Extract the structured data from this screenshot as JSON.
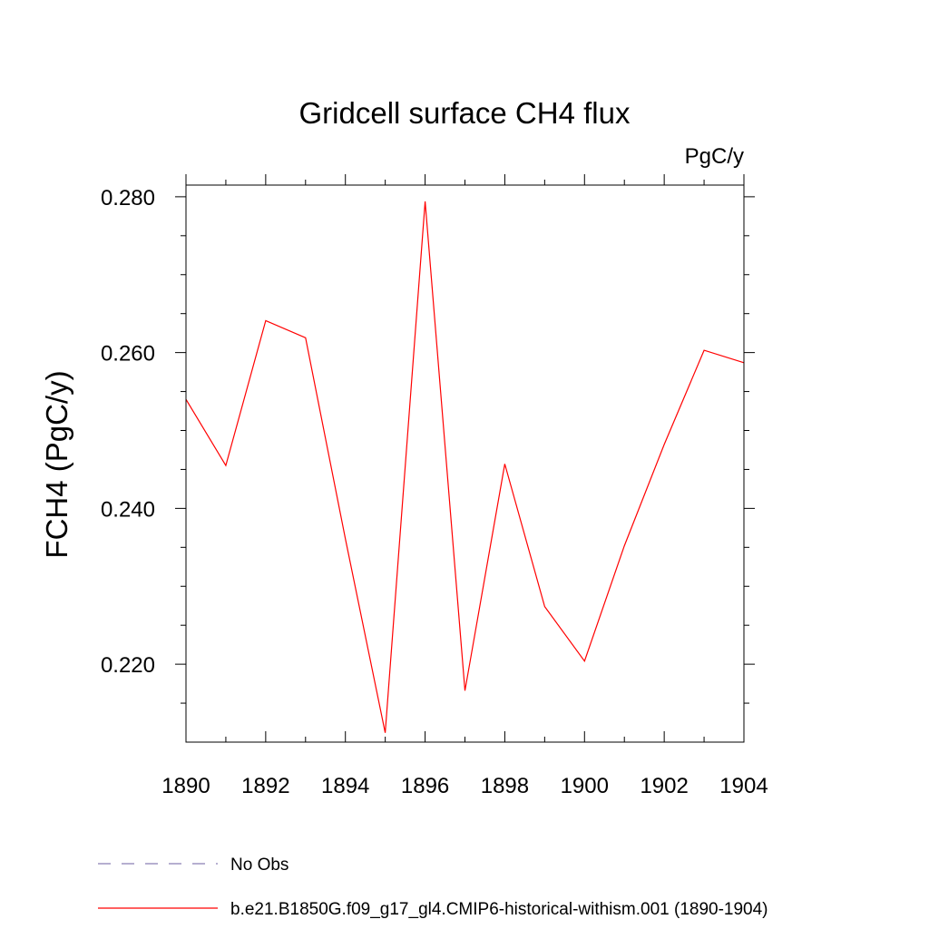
{
  "chart_data": {
    "type": "line",
    "title": "Gridcell surface CH4 flux",
    "units": "PgC/y",
    "ylabel": "FCH4  (PgC/y)",
    "xlabel": "",
    "xlim": [
      1890,
      1904
    ],
    "ylim": [
      0.21,
      0.2815
    ],
    "xticks": [
      1890,
      1892,
      1894,
      1896,
      1898,
      1900,
      1902,
      1904
    ],
    "xtick_labels": [
      "1890",
      "1892",
      "1894",
      "1896",
      "1898",
      "1900",
      "1902",
      "1904"
    ],
    "yticks": [
      0.22,
      0.24,
      0.26,
      0.28
    ],
    "ytick_labels": [
      "0.220",
      "0.240",
      "0.260",
      "0.280"
    ],
    "grid": false,
    "series": [
      {
        "name": "b.e21.B1850G.f09_g17_gl4.CMIP6-historical-withism.001 (1890-1904)",
        "color": "#ff0000",
        "style": "solid",
        "x": [
          1890,
          1891,
          1892,
          1893,
          1894,
          1895,
          1896,
          1897,
          1898,
          1899,
          1900,
          1901,
          1902,
          1903,
          1904
        ],
        "y": [
          0.254,
          0.2455,
          0.2641,
          0.2619,
          0.2361,
          0.2112,
          0.2794,
          0.2166,
          0.2457,
          0.2274,
          0.2204,
          0.2352,
          0.2482,
          0.2603,
          0.2587
        ]
      }
    ],
    "legend": {
      "placement": "bottom-left",
      "entries": [
        {
          "label": "No Obs",
          "color": "#8a7fb5",
          "style": "dashed"
        },
        {
          "label": "b.e21.B1850G.f09_g17_gl4.CMIP6-historical-withism.001 (1890-1904)",
          "color": "#ff0000",
          "style": "solid"
        }
      ]
    }
  }
}
